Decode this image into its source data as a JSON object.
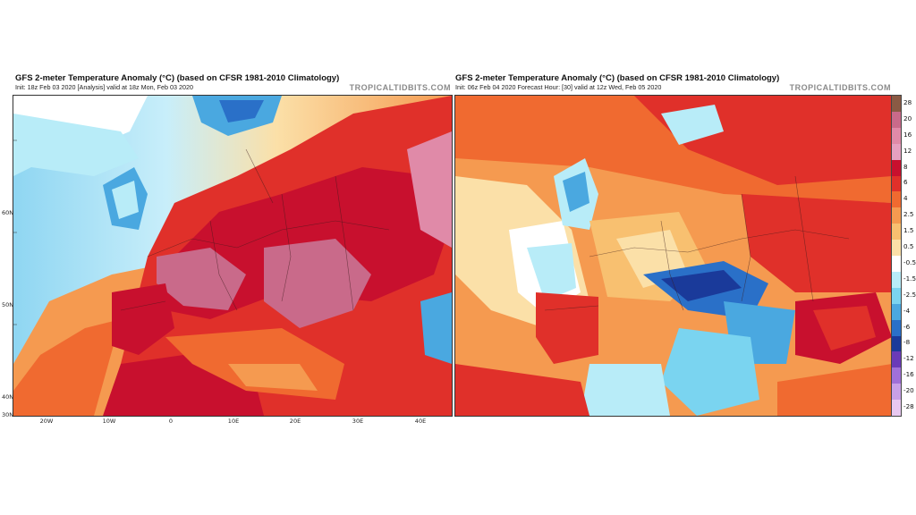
{
  "left_panel": {
    "title": "GFS 2-meter Temperature Anomaly (°C) (based on CFSR 1981-2010 Climatology)",
    "subtitle": "Init: 18z Feb 03 2020   [Analysis]   valid at 18z Mon, Feb 03 2020",
    "brand": "TROPICALTIDBITS.COM",
    "lat_labels": [
      "60N",
      "50N",
      "40N",
      "30N"
    ],
    "lon_labels": [
      "20W",
      "10W",
      "0",
      "10E",
      "20E",
      "30E",
      "40E"
    ]
  },
  "right_panel": {
    "title": "GFS 2-meter Temperature Anomaly (°C) (based on CFSR 1981-2010 Climatology)",
    "subtitle": "Init: 06z Feb 04 2020   Forecast Hour: [30]   valid at 12z Wed, Feb 05 2020",
    "brand": "TROPICALTIDBITS.COM"
  },
  "colorbar": {
    "labels": [
      "28",
      "20",
      "16",
      "12",
      "8",
      "6",
      "4",
      "2.5",
      "1.5",
      "0.5",
      "-0.5",
      "-1.5",
      "-2.5",
      "-4",
      "-6",
      "-8",
      "-12",
      "-16",
      "-20",
      "-28"
    ],
    "colors": [
      "#8a5a44",
      "#c96a8a",
      "#e08aa8",
      "#e6a0c0",
      "#c8102e",
      "#e0302a",
      "#f06a30",
      "#f59a50",
      "#f8c070",
      "#fbe0a8",
      "#ffffff",
      "#b8ecf8",
      "#7ad4f0",
      "#4aa8e0",
      "#2a70c8",
      "#1a3a9a",
      "#6a3ab8",
      "#a070d8",
      "#c8a0e8",
      "#e8c8f0"
    ]
  },
  "icons": {
    "map": "temperature-anomaly-map-icon"
  }
}
